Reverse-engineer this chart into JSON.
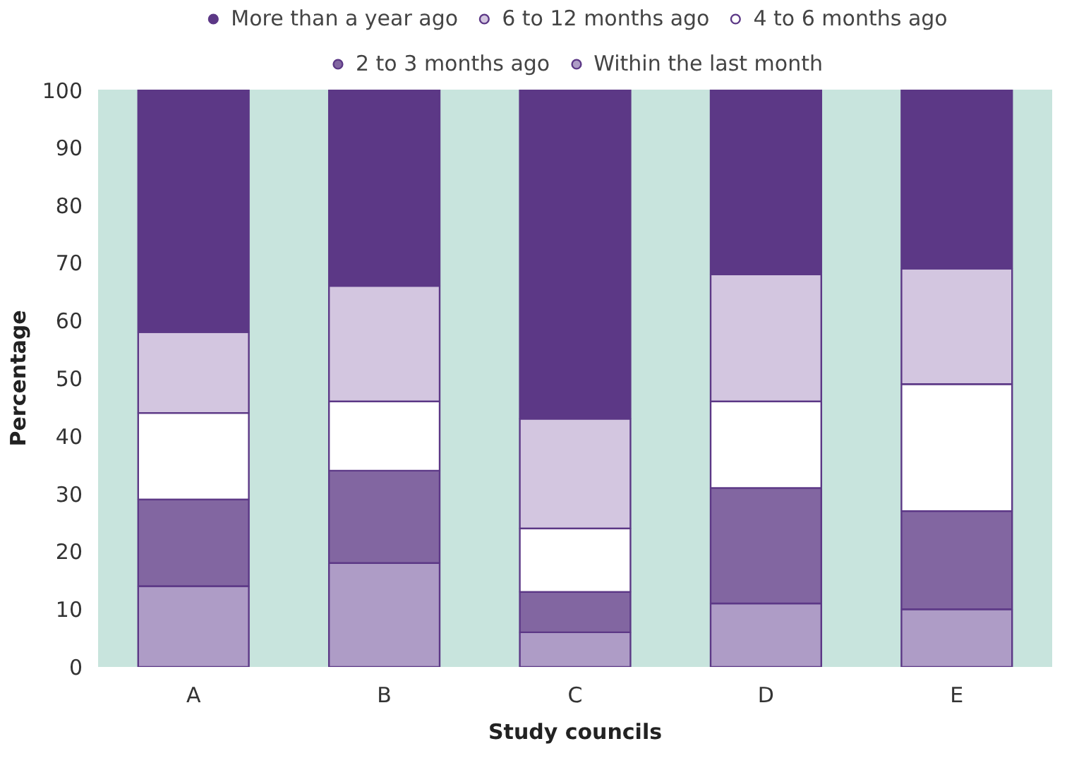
{
  "chart_data": {
    "type": "bar",
    "stacked": true,
    "xlabel": "Study councils",
    "ylabel": "Percentage",
    "categories": [
      "A",
      "B",
      "C",
      "D",
      "E"
    ],
    "ylim": [
      0,
      100
    ],
    "yticks": [
      0,
      10,
      20,
      30,
      40,
      50,
      60,
      70,
      80,
      90,
      100
    ],
    "grid": false,
    "legend": "top",
    "series": [
      {
        "name": "Within the last month",
        "color": "#ae9cc6",
        "values": [
          14,
          18,
          6,
          11,
          10
        ]
      },
      {
        "name": "2 to 3 months ago",
        "color": "#8266a1",
        "values": [
          15,
          16,
          7,
          20,
          17
        ]
      },
      {
        "name": "4 to 6 months ago",
        "color": "#ffffff",
        "values": [
          15,
          12,
          11,
          15,
          22
        ]
      },
      {
        "name": "6 to 12 months ago",
        "color": "#d3c6e0",
        "values": [
          14,
          20,
          19,
          22,
          20
        ]
      },
      {
        "name": "More than a year ago",
        "color": "#5c3886",
        "values": [
          42,
          34,
          57,
          32,
          31
        ]
      }
    ]
  }
}
